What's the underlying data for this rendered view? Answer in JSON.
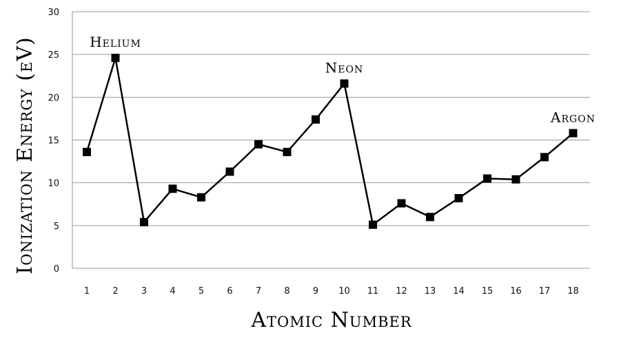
{
  "chart_data": {
    "type": "line",
    "xlabel": "Atomic Number",
    "ylabel": "Ionization Energy (eV)",
    "x": [
      1,
      2,
      3,
      4,
      5,
      6,
      7,
      8,
      9,
      10,
      11,
      12,
      13,
      14,
      15,
      16,
      17,
      18
    ],
    "series": [
      {
        "values": [
          13.6,
          24.6,
          5.4,
          9.3,
          8.3,
          11.3,
          14.5,
          13.6,
          17.4,
          21.6,
          5.1,
          7.6,
          6.0,
          8.2,
          10.5,
          10.4,
          13.0,
          15.8
        ]
      }
    ],
    "ylim": [
      0,
      30
    ],
    "yticks": [
      0,
      5,
      10,
      15,
      20,
      25,
      30
    ],
    "grid": true,
    "annotations": [
      {
        "text": "Helium",
        "x": 2
      },
      {
        "text": "Neon",
        "x": 10
      },
      {
        "text": "Argon",
        "x": 18
      }
    ],
    "colors": {
      "line": "#000000",
      "marker": "#000000",
      "grid": "#9a9a9a"
    }
  }
}
